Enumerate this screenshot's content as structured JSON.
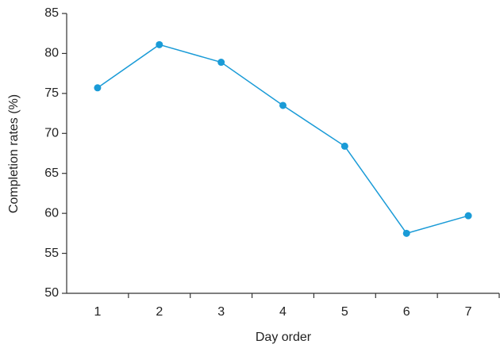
{
  "chart_data": {
    "type": "line",
    "x_label": "Day order",
    "y_label": "Completion rates (%)",
    "categories": [
      "1",
      "2",
      "3",
      "4",
      "5",
      "6",
      "7"
    ],
    "series": [
      {
        "name": "Completion rate",
        "color": "#1a9bd7",
        "values": [
          75.7,
          81.1,
          78.9,
          73.5,
          68.4,
          57.5,
          59.7
        ]
      }
    ],
    "ylim": [
      50,
      85
    ],
    "yticks": [
      50,
      55,
      60,
      65,
      70,
      75,
      80,
      85
    ],
    "grid": false
  }
}
